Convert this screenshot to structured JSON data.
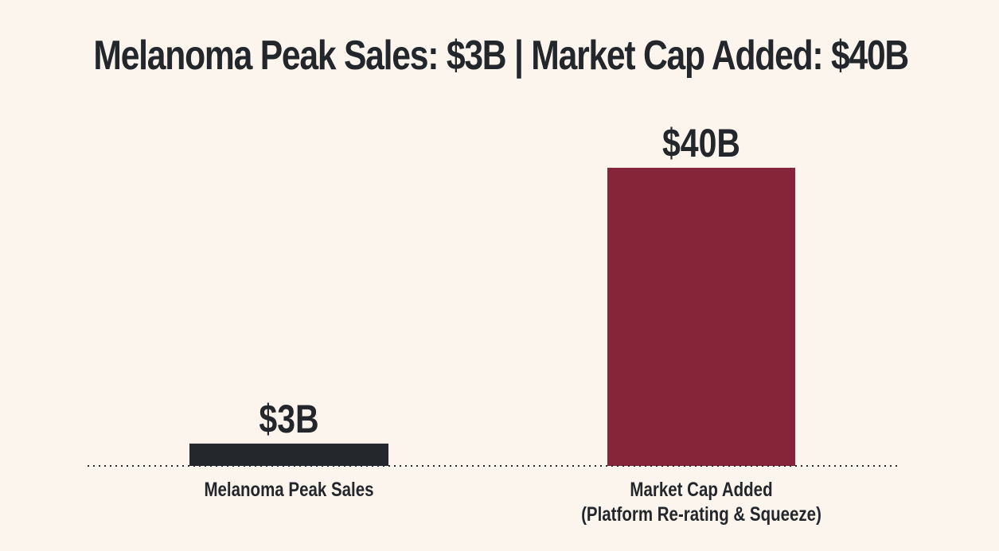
{
  "chart_data": {
    "type": "bar",
    "title": "Melanoma Peak Sales: $3B | Market Cap Added: $40B",
    "categories": [
      [
        "Melanoma Peak Sales"
      ],
      [
        "Market Cap Added",
        "(Platform Re-rating & Squeeze)"
      ]
    ],
    "values": [
      3,
      40
    ],
    "value_labels": [
      "$3B",
      "$40B"
    ],
    "colors": [
      "#24272b",
      "#86243a"
    ],
    "unit": "B USD",
    "xlabel": "",
    "ylabel": "",
    "ylim": [
      0,
      40
    ],
    "grid": false,
    "legend": "none",
    "baseline_style": "dotted"
  }
}
